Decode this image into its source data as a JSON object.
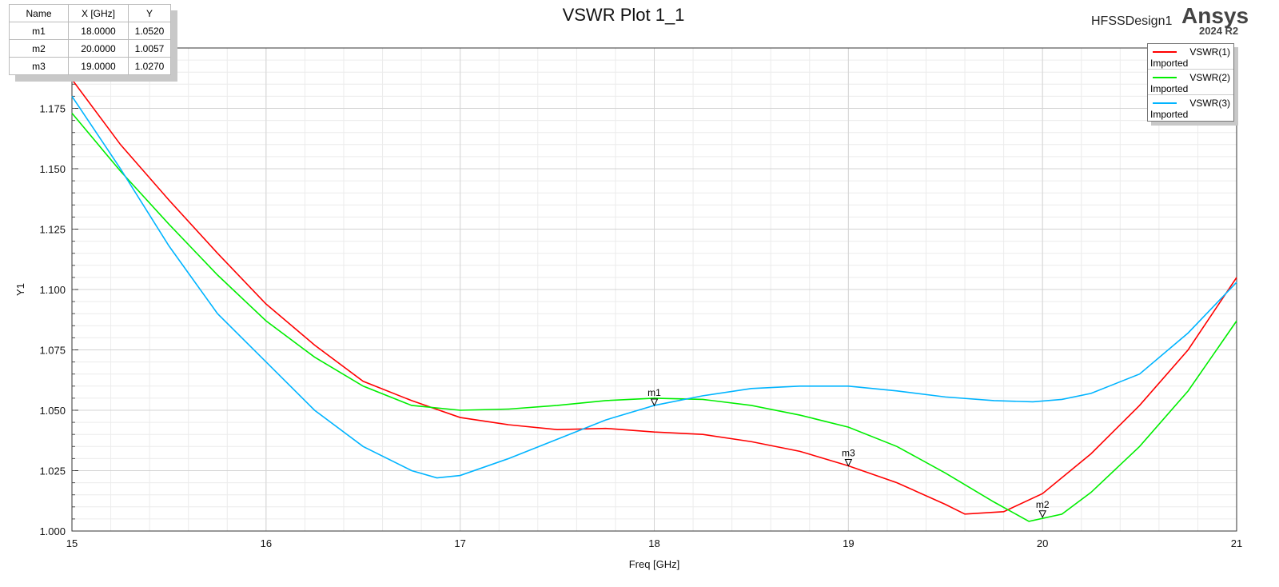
{
  "chart_data": {
    "type": "line",
    "title": "VSWR Plot 1_1",
    "xlabel": "Freq [GHz]",
    "ylabel": "Y1",
    "xlim": [
      15,
      21
    ],
    "ylim": [
      1.0,
      1.2
    ],
    "xticks": [
      "15",
      "16",
      "17",
      "18",
      "19",
      "20",
      "21"
    ],
    "yticks": [
      "1.000",
      "1.025",
      "1.050",
      "1.075",
      "1.100",
      "1.125",
      "1.150",
      "1.175"
    ],
    "grid": true,
    "legend_placement": "top-right",
    "series": [
      {
        "name": "VSWR(1)",
        "sub": "Imported",
        "color": "#ff0000",
        "x": [
          15,
          15.25,
          15.5,
          15.75,
          16,
          16.25,
          16.5,
          16.75,
          17,
          17.25,
          17.5,
          17.75,
          18,
          18.25,
          18.5,
          18.75,
          19,
          19.25,
          19.5,
          19.6,
          19.8,
          20,
          20.25,
          20.5,
          20.75,
          21
        ],
        "y": [
          1.187,
          1.16,
          1.137,
          1.115,
          1.094,
          1.077,
          1.062,
          1.054,
          1.047,
          1.044,
          1.042,
          1.0425,
          1.041,
          1.04,
          1.037,
          1.033,
          1.027,
          1.02,
          1.011,
          1.007,
          1.008,
          1.0155,
          1.032,
          1.052,
          1.075,
          1.105
        ]
      },
      {
        "name": "VSWR(2)",
        "sub": "Imported",
        "color": "#00ee00",
        "x": [
          15,
          15.25,
          15.5,
          15.75,
          16,
          16.25,
          16.5,
          16.75,
          17,
          17.25,
          17.5,
          17.75,
          18,
          18.25,
          18.5,
          18.75,
          19,
          19.25,
          19.5,
          19.75,
          19.93,
          20.1,
          20.25,
          20.5,
          20.75,
          21
        ],
        "y": [
          1.173,
          1.149,
          1.127,
          1.106,
          1.087,
          1.072,
          1.06,
          1.052,
          1.05,
          1.0505,
          1.052,
          1.054,
          1.055,
          1.0545,
          1.052,
          1.048,
          1.043,
          1.035,
          1.024,
          1.012,
          1.004,
          1.007,
          1.016,
          1.035,
          1.058,
          1.087
        ]
      },
      {
        "name": "VSWR(3)",
        "sub": "Imported",
        "color": "#00b4ff",
        "x": [
          15,
          15.25,
          15.5,
          15.75,
          16,
          16.25,
          16.5,
          16.75,
          16.88,
          17,
          17.25,
          17.5,
          17.75,
          18,
          18.25,
          18.5,
          18.75,
          19,
          19.25,
          19.5,
          19.75,
          19.95,
          20.1,
          20.25,
          20.5,
          20.75,
          21
        ],
        "y": [
          1.18,
          1.15,
          1.118,
          1.09,
          1.07,
          1.05,
          1.035,
          1.025,
          1.022,
          1.023,
          1.03,
          1.038,
          1.046,
          1.052,
          1.056,
          1.059,
          1.06,
          1.06,
          1.058,
          1.0555,
          1.054,
          1.0535,
          1.0545,
          1.057,
          1.065,
          1.082,
          1.103
        ]
      }
    ],
    "markers": [
      {
        "name": "m1",
        "x": 18,
        "y": 1.052,
        "x_text": "18.0000",
        "y_text": "1.0520"
      },
      {
        "name": "m2",
        "x": 20,
        "y": 1.0057,
        "x_text": "20.0000",
        "y_text": "1.0057"
      },
      {
        "name": "m3",
        "x": 19,
        "y": 1.027,
        "x_text": "19.0000",
        "y_text": "1.0270"
      }
    ]
  },
  "marker_table": {
    "headers": [
      "Name",
      "X [GHz]",
      "Y"
    ]
  },
  "header": {
    "design": "HFSSDesign1",
    "brand": "Ansys",
    "version": "2024 R2"
  }
}
